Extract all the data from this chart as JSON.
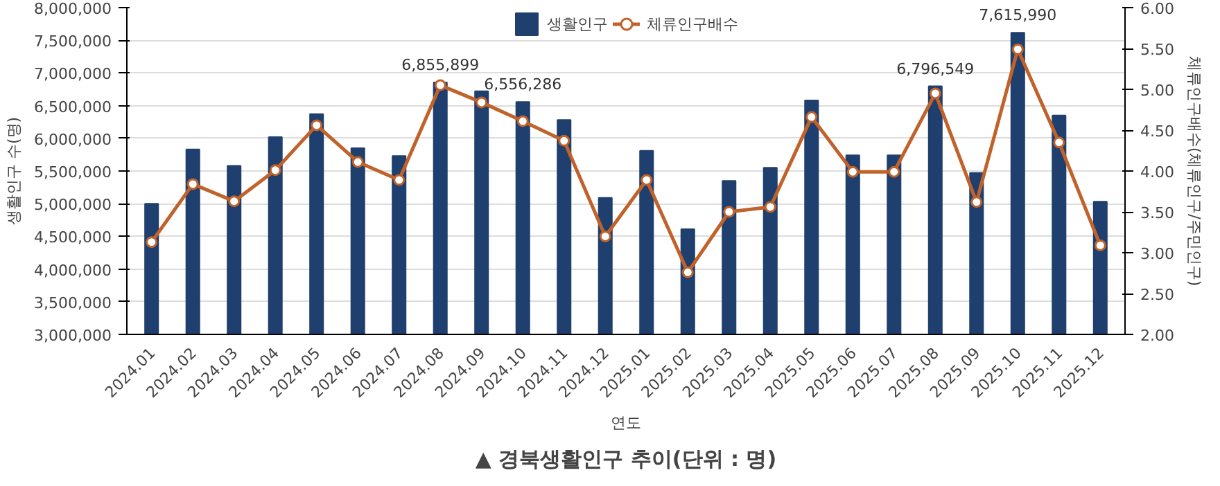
{
  "chart_data": {
    "type": "bar",
    "title": "▲ 경북생활인구 추이(단위 : 명)",
    "xlabel": "연도",
    "ylabel": "생활인구 수(명)",
    "y2label": "체류인구배수(체류인구/주민인구)",
    "categories": [
      "2024.01",
      "2024.02",
      "2024.03",
      "2024.04",
      "2024.05",
      "2024.06",
      "2024.07",
      "2024.08",
      "2024.09",
      "2024.10",
      "2024.11",
      "2024.12",
      "2025.01",
      "2025.02",
      "2025.03",
      "2025.04",
      "2025.05",
      "2025.06",
      "2025.07",
      "2025.08",
      "2025.09",
      "2025.10",
      "2025.11",
      "2025.12"
    ],
    "series": [
      {
        "name": "생활인구",
        "color": "#1f3f6e",
        "values": [
          5000000,
          5830000,
          5580000,
          6020000,
          6370000,
          5850000,
          5730000,
          6855899,
          6720000,
          6556286,
          6280000,
          5090000,
          5810000,
          4610000,
          5350000,
          5550000,
          6580000,
          5740000,
          5740000,
          6796549,
          5470000,
          7615990,
          6350000,
          5030000
        ],
        "value_labels": [
          null,
          null,
          null,
          null,
          null,
          null,
          null,
          "6,855,899",
          null,
          "6,556,286",
          null,
          null,
          null,
          null,
          null,
          null,
          null,
          null,
          null,
          "6,796,549",
          null,
          "7,615,990",
          null,
          null
        ]
      },
      {
        "name": "체류인구배수",
        "type": "line",
        "axis": "y2",
        "color": "#c0622a",
        "marker": "circle",
        "values": [
          3.13,
          3.84,
          3.63,
          4.01,
          4.56,
          4.11,
          3.89,
          5.05,
          4.84,
          4.61,
          4.37,
          3.2,
          3.89,
          2.76,
          3.5,
          3.56,
          4.66,
          3.99,
          3.99,
          4.95,
          3.62,
          5.49,
          4.35,
          3.09
        ]
      }
    ],
    "ylim": [
      3000000,
      8000000
    ],
    "yticks": [
      {
        "value": 3000000,
        "label": "3,000,000"
      },
      {
        "value": 3500000,
        "label": "3,500,000"
      },
      {
        "value": 4000000,
        "label": "4,000,000"
      },
      {
        "value": 4500000,
        "label": "4,500,000"
      },
      {
        "value": 5000000,
        "label": "5,000,000"
      },
      {
        "value": 5500000,
        "label": "5,500,000"
      },
      {
        "value": 6000000,
        "label": "6,000,000"
      },
      {
        "value": 6500000,
        "label": "6,500,000"
      },
      {
        "value": 7000000,
        "label": "7,000,000"
      },
      {
        "value": 7500000,
        "label": "7,500,000"
      },
      {
        "value": 8000000,
        "label": "8,000,000"
      }
    ],
    "y2lim": [
      2,
      6
    ],
    "y2ticks": [
      {
        "value": 2,
        "label": "2.00"
      },
      {
        "value": 2.5,
        "label": "2.50"
      },
      {
        "value": 3,
        "label": "3.00"
      },
      {
        "value": 3.5,
        "label": "3.50"
      },
      {
        "value": 4,
        "label": "4.00"
      },
      {
        "value": 4.5,
        "label": "4.50"
      },
      {
        "value": 5,
        "label": "5.00"
      },
      {
        "value": 5.5,
        "label": "5.50"
      },
      {
        "value": 6,
        "label": "6.00"
      }
    ],
    "grid": "y",
    "legend": "top"
  }
}
